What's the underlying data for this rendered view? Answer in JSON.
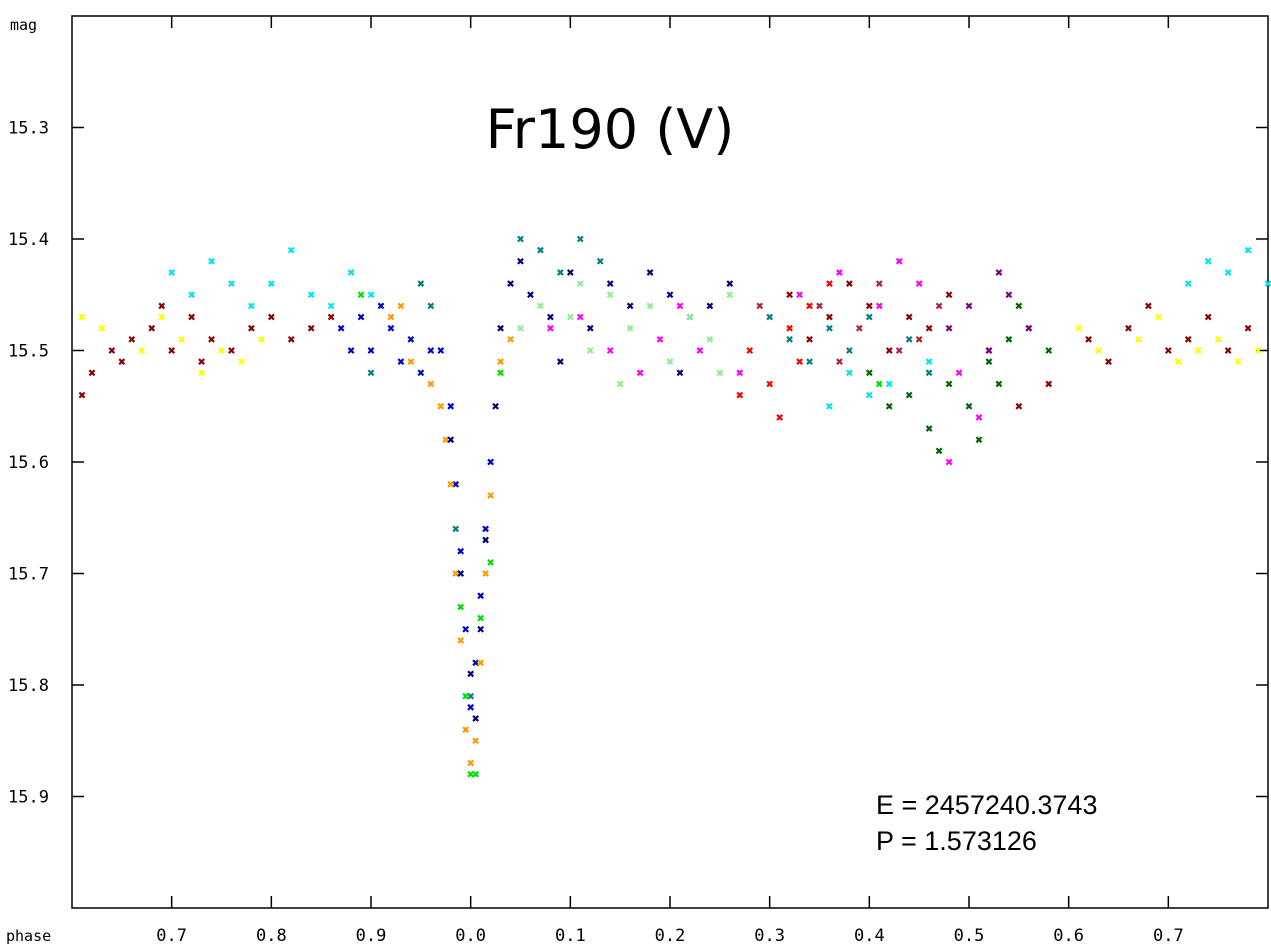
{
  "chart_data": {
    "type": "scatter",
    "title": "Fr190 (V)",
    "xlabel": "phase",
    "ylabel": "mag",
    "x_ticks": [
      "0.7",
      "0.8",
      "0.9",
      "0.0",
      "0.1",
      "0.2",
      "0.3",
      "0.4",
      "0.5",
      "0.6",
      "0.7"
    ],
    "x_tick_positions": [
      -0.3,
      -0.2,
      -0.1,
      0.0,
      0.1,
      0.2,
      0.3,
      0.4,
      0.5,
      0.6,
      0.7
    ],
    "xlim": [
      -0.4,
      0.8
    ],
    "y_ticks": [
      "15.3",
      "15.4",
      "15.5",
      "15.6",
      "15.7",
      "15.8",
      "15.9"
    ],
    "y_tick_values": [
      15.3,
      15.4,
      15.5,
      15.6,
      15.7,
      15.8,
      15.9
    ],
    "ylim": [
      15.2,
      16.0
    ],
    "y_inverted": true,
    "grid": false,
    "annotations": [
      "E = 2457240.3743",
      "P = 1.573126"
    ],
    "marker": "x",
    "series": [
      {
        "color": "#8b0000",
        "points": [
          [
            -0.38,
            15.52
          ],
          [
            -0.36,
            15.5
          ],
          [
            -0.34,
            15.49
          ],
          [
            -0.32,
            15.48
          ],
          [
            -0.3,
            15.5
          ],
          [
            -0.28,
            15.47
          ],
          [
            -0.26,
            15.49
          ],
          [
            -0.24,
            15.5
          ],
          [
            -0.22,
            15.48
          ],
          [
            -0.2,
            15.47
          ],
          [
            -0.18,
            15.49
          ],
          [
            -0.16,
            15.48
          ],
          [
            -0.14,
            15.47
          ],
          [
            -0.39,
            15.54
          ],
          [
            -0.35,
            15.51
          ],
          [
            -0.31,
            15.46
          ],
          [
            -0.27,
            15.51
          ],
          [
            0.32,
            15.45
          ],
          [
            0.36,
            15.47
          ],
          [
            0.4,
            15.46
          ],
          [
            0.44,
            15.47
          ],
          [
            0.48,
            15.45
          ],
          [
            0.52,
            15.5
          ],
          [
            0.55,
            15.55
          ],
          [
            0.58,
            15.53
          ],
          [
            0.62,
            15.49
          ],
          [
            0.66,
            15.48
          ],
          [
            0.7,
            15.5
          ],
          [
            0.74,
            15.47
          ],
          [
            0.78,
            15.48
          ],
          [
            0.64,
            15.51
          ],
          [
            0.68,
            15.46
          ],
          [
            0.72,
            15.49
          ],
          [
            0.76,
            15.5
          ],
          [
            0.42,
            15.5
          ],
          [
            0.46,
            15.48
          ],
          [
            0.34,
            15.49
          ],
          [
            0.38,
            15.44
          ]
        ]
      },
      {
        "color": "#ffff00",
        "points": [
          [
            -0.39,
            15.47
          ],
          [
            -0.37,
            15.48
          ],
          [
            -0.33,
            15.5
          ],
          [
            -0.29,
            15.49
          ],
          [
            -0.25,
            15.5
          ],
          [
            -0.23,
            15.51
          ],
          [
            -0.21,
            15.49
          ],
          [
            -0.27,
            15.52
          ],
          [
            -0.31,
            15.47
          ],
          [
            0.61,
            15.48
          ],
          [
            0.63,
            15.5
          ],
          [
            0.67,
            15.49
          ],
          [
            0.71,
            15.51
          ],
          [
            0.73,
            15.5
          ],
          [
            0.75,
            15.49
          ],
          [
            0.77,
            15.51
          ],
          [
            0.79,
            15.5
          ],
          [
            0.69,
            15.47
          ]
        ]
      },
      {
        "color": "#00e5ee",
        "points": [
          [
            -0.3,
            15.43
          ],
          [
            -0.28,
            15.45
          ],
          [
            -0.26,
            15.42
          ],
          [
            -0.24,
            15.44
          ],
          [
            -0.22,
            15.46
          ],
          [
            -0.2,
            15.44
          ],
          [
            -0.18,
            15.41
          ],
          [
            -0.16,
            15.45
          ],
          [
            -0.14,
            15.46
          ],
          [
            -0.12,
            15.43
          ],
          [
            -0.1,
            15.45
          ],
          [
            0.72,
            15.44
          ],
          [
            0.74,
            15.42
          ],
          [
            0.76,
            15.43
          ],
          [
            0.78,
            15.41
          ],
          [
            0.8,
            15.44
          ],
          [
            0.38,
            15.52
          ],
          [
            0.42,
            15.53
          ],
          [
            0.46,
            15.51
          ],
          [
            0.36,
            15.55
          ],
          [
            0.4,
            15.54
          ]
        ]
      },
      {
        "color": "#0000cd",
        "points": [
          [
            -0.13,
            15.48
          ],
          [
            -0.11,
            15.47
          ],
          [
            -0.1,
            15.5
          ],
          [
            -0.08,
            15.48
          ],
          [
            -0.07,
            15.51
          ],
          [
            -0.06,
            15.49
          ],
          [
            -0.05,
            15.52
          ],
          [
            -0.04,
            15.5
          ],
          [
            -0.03,
            15.5
          ],
          [
            -0.12,
            15.5
          ],
          [
            -0.09,
            15.46
          ],
          [
            -0.02,
            15.55
          ],
          [
            -0.015,
            15.62
          ],
          [
            -0.01,
            15.68
          ],
          [
            -0.005,
            15.75
          ],
          [
            0.0,
            15.82
          ],
          [
            0.005,
            15.78
          ],
          [
            0.01,
            15.72
          ],
          [
            0.015,
            15.66
          ],
          [
            0.02,
            15.6
          ]
        ]
      },
      {
        "color": "#ff9900",
        "points": [
          [
            -0.08,
            15.47
          ],
          [
            -0.06,
            15.51
          ],
          [
            -0.04,
            15.53
          ],
          [
            -0.03,
            15.55
          ],
          [
            -0.025,
            15.58
          ],
          [
            -0.02,
            15.62
          ],
          [
            -0.015,
            15.7
          ],
          [
            -0.01,
            15.76
          ],
          [
            -0.005,
            15.84
          ],
          [
            0.0,
            15.87
          ],
          [
            0.005,
            15.85
          ],
          [
            0.01,
            15.78
          ],
          [
            0.015,
            15.7
          ],
          [
            0.02,
            15.63
          ],
          [
            0.03,
            15.51
          ],
          [
            0.04,
            15.49
          ],
          [
            -0.07,
            15.46
          ]
        ]
      },
      {
        "color": "#000080",
        "points": [
          [
            -0.02,
            15.58
          ],
          [
            -0.01,
            15.7
          ],
          [
            0.0,
            15.79
          ],
          [
            0.005,
            15.83
          ],
          [
            0.01,
            15.75
          ],
          [
            0.015,
            15.67
          ],
          [
            0.025,
            15.55
          ],
          [
            0.03,
            15.48
          ],
          [
            0.04,
            15.44
          ],
          [
            0.05,
            15.42
          ],
          [
            0.06,
            15.45
          ],
          [
            0.08,
            15.47
          ],
          [
            0.1,
            15.43
          ],
          [
            0.12,
            15.48
          ],
          [
            0.14,
            15.44
          ],
          [
            0.16,
            15.46
          ],
          [
            0.18,
            15.43
          ],
          [
            0.2,
            15.45
          ],
          [
            0.22,
            15.47
          ],
          [
            0.24,
            15.46
          ],
          [
            0.26,
            15.44
          ],
          [
            0.09,
            15.51
          ],
          [
            0.21,
            15.52
          ]
        ]
      },
      {
        "color": "#008080",
        "points": [
          [
            -0.05,
            15.44
          ],
          [
            -0.04,
            15.46
          ],
          [
            -0.015,
            15.66
          ],
          [
            0.0,
            15.81
          ],
          [
            0.05,
            15.4
          ],
          [
            0.07,
            15.41
          ],
          [
            0.09,
            15.43
          ],
          [
            0.11,
            15.4
          ],
          [
            0.13,
            15.42
          ],
          [
            0.3,
            15.47
          ],
          [
            0.32,
            15.49
          ],
          [
            0.34,
            15.51
          ],
          [
            0.36,
            15.48
          ],
          [
            0.38,
            15.5
          ],
          [
            0.4,
            15.47
          ],
          [
            0.44,
            15.49
          ],
          [
            0.46,
            15.52
          ],
          [
            -0.1,
            15.52
          ]
        ]
      },
      {
        "color": "#90ee90",
        "points": [
          [
            0.05,
            15.48
          ],
          [
            0.07,
            15.46
          ],
          [
            0.1,
            15.47
          ],
          [
            0.12,
            15.5
          ],
          [
            0.14,
            15.45
          ],
          [
            0.16,
            15.48
          ],
          [
            0.18,
            15.46
          ],
          [
            0.2,
            15.51
          ],
          [
            0.22,
            15.47
          ],
          [
            0.24,
            15.49
          ],
          [
            0.26,
            15.45
          ],
          [
            0.28,
            15.5
          ],
          [
            0.15,
            15.53
          ],
          [
            0.25,
            15.52
          ],
          [
            0.11,
            15.44
          ]
        ]
      },
      {
        "color": "#ff00ff",
        "points": [
          [
            0.08,
            15.48
          ],
          [
            0.11,
            15.47
          ],
          [
            0.14,
            15.5
          ],
          [
            0.17,
            15.52
          ],
          [
            0.19,
            15.49
          ],
          [
            0.23,
            15.5
          ],
          [
            0.27,
            15.52
          ],
          [
            0.33,
            15.45
          ],
          [
            0.37,
            15.43
          ],
          [
            0.41,
            15.46
          ],
          [
            0.45,
            15.44
          ],
          [
            0.49,
            15.52
          ],
          [
            0.51,
            15.56
          ],
          [
            0.48,
            15.6
          ],
          [
            0.43,
            15.42
          ],
          [
            0.21,
            15.46
          ]
        ]
      },
      {
        "color": "#ff0000",
        "points": [
          [
            0.28,
            15.5
          ],
          [
            0.3,
            15.53
          ],
          [
            0.32,
            15.48
          ],
          [
            0.34,
            15.46
          ],
          [
            0.36,
            15.44
          ],
          [
            0.31,
            15.56
          ],
          [
            0.33,
            15.51
          ],
          [
            0.27,
            15.54
          ]
        ]
      },
      {
        "color": "#b22234",
        "points": [
          [
            0.35,
            15.46
          ],
          [
            0.39,
            15.48
          ],
          [
            0.43,
            15.5
          ],
          [
            0.47,
            15.46
          ],
          [
            0.41,
            15.44
          ],
          [
            0.45,
            15.49
          ],
          [
            0.37,
            15.51
          ],
          [
            0.29,
            15.46
          ]
        ]
      },
      {
        "color": "#006400",
        "points": [
          [
            0.4,
            15.52
          ],
          [
            0.42,
            15.55
          ],
          [
            0.44,
            15.54
          ],
          [
            0.46,
            15.57
          ],
          [
            0.48,
            15.53
          ],
          [
            0.5,
            15.55
          ],
          [
            0.52,
            15.51
          ],
          [
            0.54,
            15.49
          ],
          [
            0.56,
            15.48
          ],
          [
            0.58,
            15.5
          ],
          [
            0.47,
            15.59
          ],
          [
            0.51,
            15.58
          ],
          [
            0.55,
            15.46
          ],
          [
            0.53,
            15.53
          ]
        ]
      },
      {
        "color": "#800080",
        "points": [
          [
            0.48,
            15.48
          ],
          [
            0.5,
            15.46
          ],
          [
            0.52,
            15.5
          ],
          [
            0.54,
            15.45
          ],
          [
            0.56,
            15.48
          ],
          [
            0.53,
            15.43
          ]
        ]
      },
      {
        "color": "#00dd00",
        "points": [
          [
            -0.11,
            15.45
          ],
          [
            -0.01,
            15.73
          ],
          [
            0.0,
            15.88
          ],
          [
            0.005,
            15.88
          ],
          [
            0.01,
            15.74
          ],
          [
            0.02,
            15.69
          ],
          [
            -0.005,
            15.81
          ],
          [
            0.41,
            15.53
          ],
          [
            0.03,
            15.52
          ]
        ]
      }
    ]
  }
}
